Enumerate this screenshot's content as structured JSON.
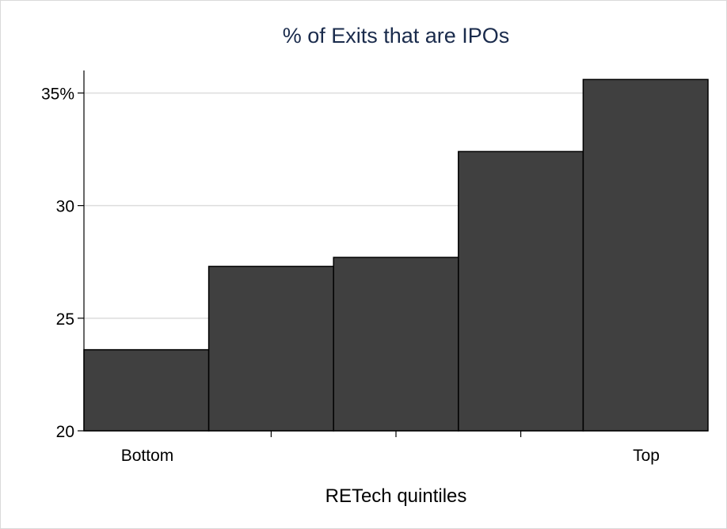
{
  "chart_data": {
    "type": "bar",
    "title": "% of Exits that are IPOs",
    "xlabel": "RETech quintiles",
    "ylabel": "",
    "ylim": [
      20,
      36
    ],
    "yticks": [
      20,
      25,
      30,
      35
    ],
    "ytick_labels": [
      "20",
      "25",
      "30",
      "35%"
    ],
    "categories": [
      "1",
      "2",
      "3",
      "4",
      "5"
    ],
    "values": [
      23.6,
      27.3,
      27.7,
      32.4,
      35.6
    ],
    "xtick_labels": [
      "Bottom",
      "",
      "",
      "",
      "Top"
    ],
    "grid": true,
    "bar_color": "#404040",
    "bar_edge_color": "#000000",
    "grid_color": "#dcdcdc",
    "title_color": "#1a2b4c"
  }
}
